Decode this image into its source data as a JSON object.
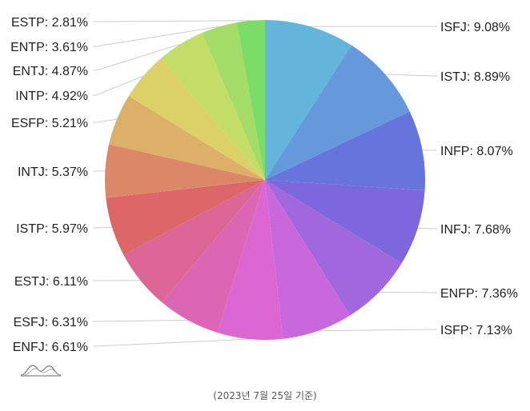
{
  "chart_data": {
    "type": "pie",
    "start_angle_deg": 0,
    "direction": "clockwise",
    "slices": [
      {
        "label": "ISFJ",
        "value": 9.08,
        "display": "ISFJ: 9.08%",
        "color": "#63b5dc"
      },
      {
        "label": "ISTJ",
        "value": 8.89,
        "display": "ISTJ: 8.89%",
        "color": "#6698dc"
      },
      {
        "label": "INFP",
        "value": 8.07,
        "display": "INFP: 8.07%",
        "color": "#6674dc"
      },
      {
        "label": "INFJ",
        "value": 7.68,
        "display": "INFJ: 7.68%",
        "color": "#7c68dc"
      },
      {
        "label": "ENFP",
        "value": 7.36,
        "display": "ENFP: 7.36%",
        "color": "#a068dc"
      },
      {
        "label": "ISFP",
        "value": 7.13,
        "display": "ISFP: 7.13%",
        "color": "#c868dc"
      },
      {
        "label": "ENFJ",
        "value": 6.61,
        "display": "ENFJ: 6.61%",
        "color": "#dc66d2"
      },
      {
        "label": "ESFJ",
        "value": 6.31,
        "display": "ESFJ: 6.31%",
        "color": "#dc66b4"
      },
      {
        "label": "ESTJ",
        "value": 6.11,
        "display": "ESTJ: 6.11%",
        "color": "#dc6696"
      },
      {
        "label": "ISTP",
        "value": 5.97,
        "display": "ISTP: 5.97%",
        "color": "#dc6668"
      },
      {
        "label": "INTJ",
        "value": 5.37,
        "display": "INTJ: 5.37%",
        "color": "#dc8868"
      },
      {
        "label": "ESFP",
        "value": 5.21,
        "display": "ESFP: 5.21%",
        "color": "#dcb068"
      },
      {
        "label": "INTP",
        "value": 4.92,
        "display": "INTP: 4.92%",
        "color": "#dcd068"
      },
      {
        "label": "ENTJ",
        "value": 4.87,
        "display": "ENTJ: 4.87%",
        "color": "#c4dc68"
      },
      {
        "label": "ENTP",
        "value": 3.61,
        "display": "ENTP: 3.61%",
        "color": "#a4dc68"
      },
      {
        "label": "ESTP",
        "value": 2.81,
        "display": "ESTP: 2.81%",
        "color": "#7cdc68"
      }
    ]
  },
  "footnote": "(2023년 7월 25일 기준)",
  "logo_icon": "mountain-line-logo-icon"
}
